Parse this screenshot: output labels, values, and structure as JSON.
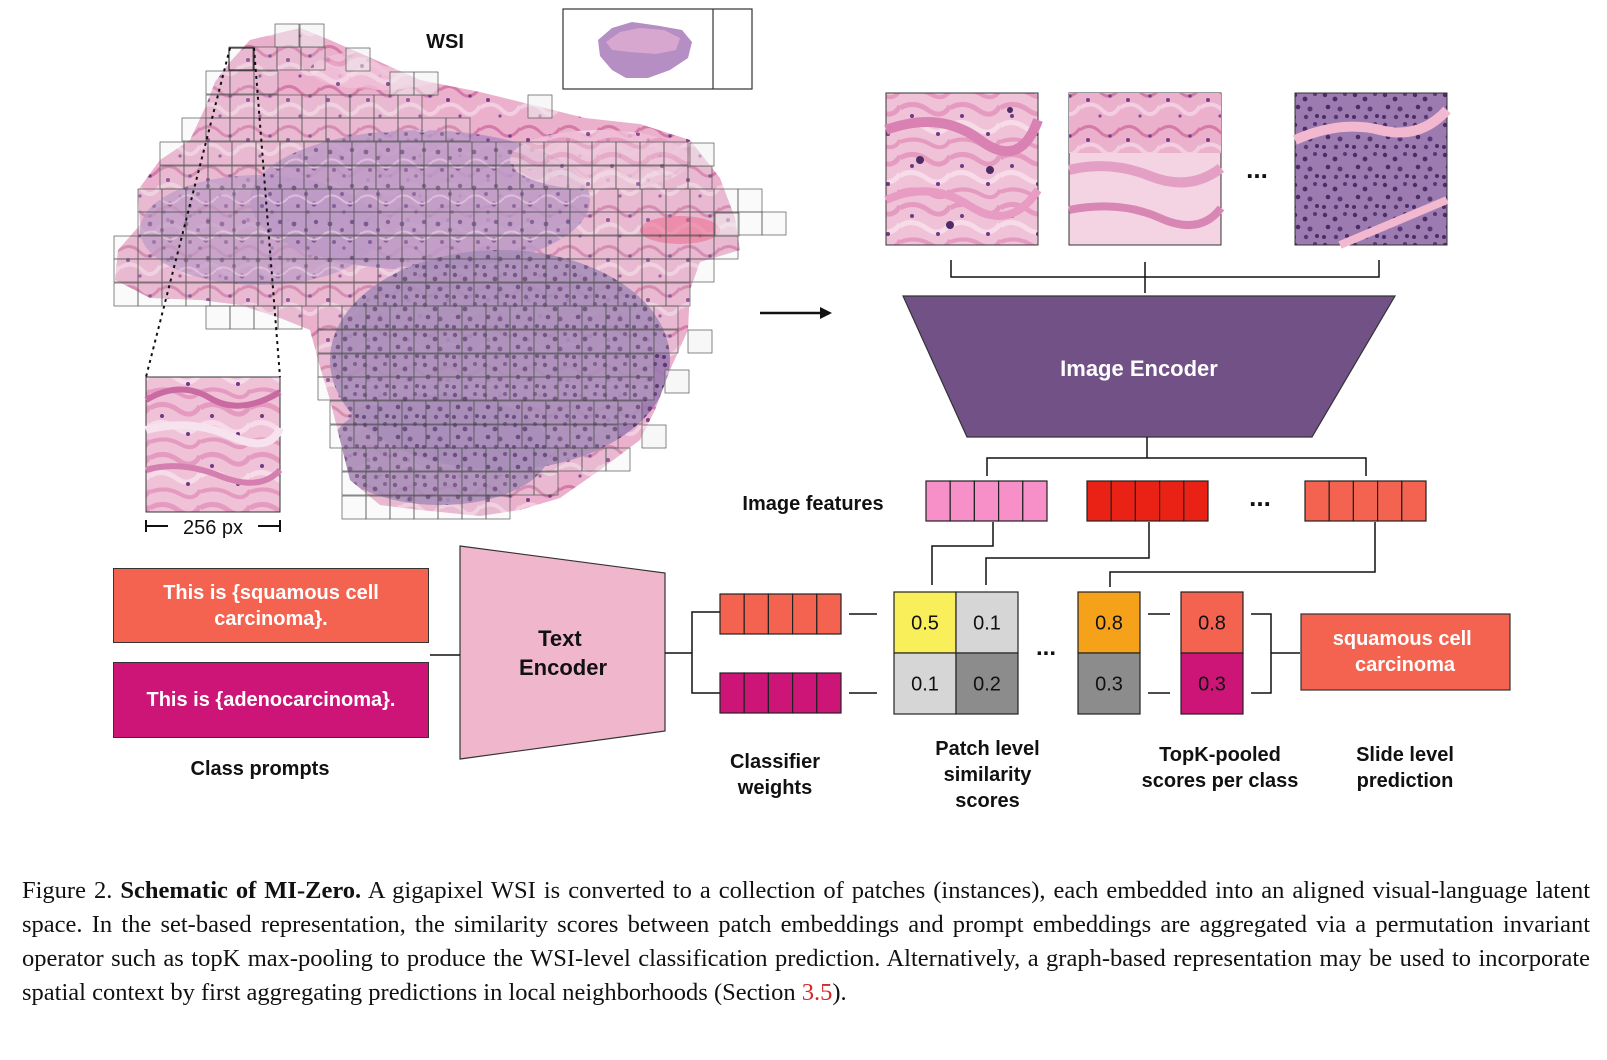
{
  "figure": {
    "wsi_label": "WSI",
    "patch_scale_label": "256 px",
    "image_encoder_label": "Image Encoder",
    "image_features_label": "Image features",
    "text_encoder_label": [
      "Text",
      "Encoder"
    ],
    "ellipsis": "...",
    "class_prompts": [
      {
        "text": [
          "This is {squamous cell",
          "carcinoma}."
        ],
        "color": "#f46350"
      },
      {
        "text": [
          "This is {adenocarcinoma}."
        ],
        "color": "#cc1577"
      }
    ],
    "class_prompts_label": "Class prompts",
    "classifier_weights_label": [
      "Classifier",
      "weights"
    ],
    "patch_similarity_label": [
      "Patch level",
      "similarity",
      "scores"
    ],
    "topk_label": [
      "TopK-pooled",
      "scores per class"
    ],
    "slide_prediction_label": [
      "Slide level",
      "prediction"
    ],
    "similarity_grid": [
      [
        {
          "value": "0.5",
          "color": "#f8ef5a"
        },
        {
          "value": "0.1",
          "color": "#d6d6d6"
        }
      ],
      [
        {
          "value": "0.1",
          "color": "#d6d6d6"
        },
        {
          "value": "0.2",
          "color": "#8c8c8c"
        }
      ]
    ],
    "intermediate_scores": [
      {
        "value": "0.8",
        "color": "#f6a11a"
      },
      {
        "value": "0.3",
        "color": "#8c8c8c"
      }
    ],
    "topk_scores": [
      {
        "value": "0.8",
        "color": "#f46350"
      },
      {
        "value": "0.3",
        "color": "#cc1577"
      }
    ],
    "prediction": [
      "squamous cell",
      "carcinoma"
    ],
    "colors": {
      "encoder_purple": "#725186",
      "text_encoder_pink": "#f0b7cc",
      "feature_pink": "#f78fc8",
      "feature_red": "#ea2216",
      "feature_coral": "#f46350",
      "weight_coral": "#f46350",
      "weight_magenta": "#cc1577",
      "tissue_pink": "#e9a3c6",
      "tissue_purple": "#a680b4"
    }
  },
  "caption": {
    "figure_number": "Figure 2.",
    "title": "Schematic of MI-Zero.",
    "body": "A gigapixel WSI is converted to a collection of patches (instances), each embedded into an aligned visual-language latent space. In the set-based representation, the similarity scores between patch embeddings and prompt embeddings are aggregated via a permutation invariant operator such as topK max-pooling to produce the WSI-level classification prediction. Alternatively, a graph-based representation may be used to incorporate spatial context by first aggregating predictions in local neighborhoods (Section ",
    "section_ref": "3.5",
    "closing": ")."
  }
}
